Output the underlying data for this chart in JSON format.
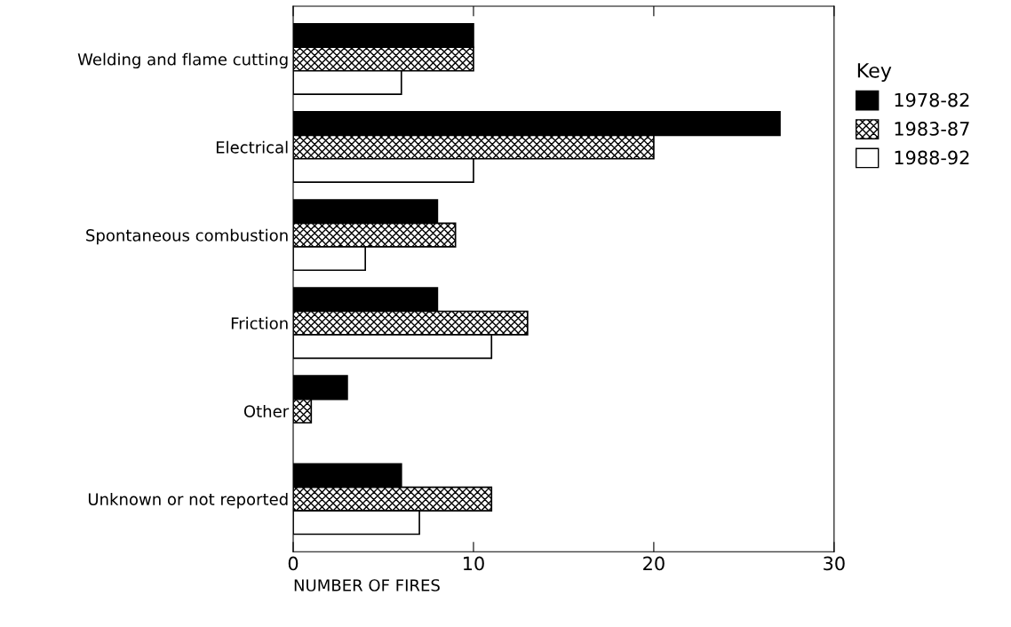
{
  "chart_data": {
    "type": "bar",
    "orientation": "horizontal",
    "xlabel": "NUMBER OF FIRES",
    "legend_title": "Key",
    "legend": "right",
    "grid": false,
    "categories": [
      "Welding and flame cutting",
      "Electrical",
      "Spontaneous combustion",
      "Friction",
      "Other",
      "Unknown or not reported"
    ],
    "xlim": [
      0,
      30
    ],
    "xticks": [
      0,
      10,
      20,
      30
    ],
    "series": [
      {
        "name": "1978-82",
        "color": "#000000",
        "values": [
          10,
          27,
          8,
          8,
          3,
          6
        ]
      },
      {
        "name": "1983-87",
        "color": "#000000",
        "values": [
          10,
          20,
          9,
          13,
          1,
          11
        ]
      },
      {
        "name": "1988-92",
        "color": "#ffffff",
        "values": [
          6,
          10,
          4,
          11,
          null,
          7
        ]
      }
    ]
  }
}
